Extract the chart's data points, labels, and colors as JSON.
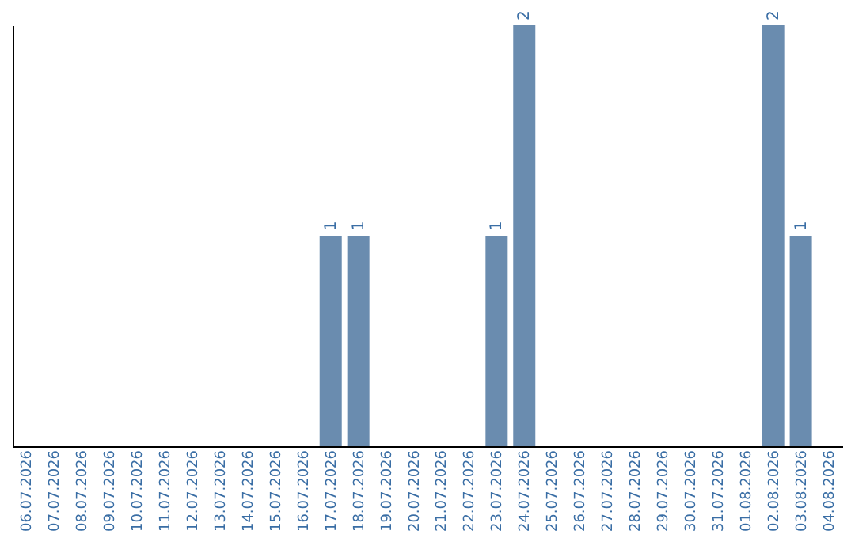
{
  "chart_data": {
    "type": "bar",
    "categories": [
      "06.07.2026",
      "07.07.2026",
      "08.07.2026",
      "09.07.2026",
      "10.07.2026",
      "11.07.2026",
      "12.07.2026",
      "13.07.2026",
      "14.07.2026",
      "15.07.2026",
      "16.07.2026",
      "17.07.2026",
      "18.07.2026",
      "19.07.2026",
      "20.07.2026",
      "21.07.2026",
      "22.07.2026",
      "23.07.2026",
      "24.07.2026",
      "25.07.2026",
      "26.07.2026",
      "27.07.2026",
      "28.07.2026",
      "29.07.2026",
      "30.07.2026",
      "31.07.2026",
      "01.08.2026",
      "02.08.2026",
      "03.08.2026",
      "04.08.2026"
    ],
    "values": [
      0,
      0,
      0,
      0,
      0,
      0,
      0,
      0,
      0,
      0,
      0,
      1,
      1,
      0,
      0,
      0,
      0,
      1,
      2,
      0,
      0,
      0,
      0,
      0,
      0,
      0,
      0,
      2,
      1,
      0
    ],
    "value_labels": [
      null,
      null,
      null,
      null,
      null,
      null,
      null,
      null,
      null,
      null,
      null,
      "1",
      "1",
      null,
      null,
      null,
      null,
      "1",
      "2",
      null,
      null,
      null,
      null,
      null,
      null,
      null,
      null,
      "2",
      "1",
      null
    ],
    "color": "#6a8caf",
    "tick_labels": "x",
    "grid": false
  }
}
